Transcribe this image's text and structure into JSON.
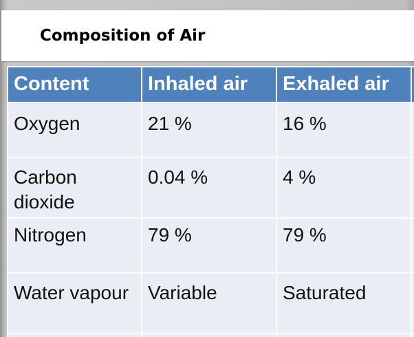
{
  "title": "Composition of Air",
  "table": {
    "headers": [
      "Content",
      "Inhaled air",
      "Exhaled air"
    ],
    "rows": [
      [
        "Oxygen",
        "21 %",
        "16 %"
      ],
      [
        "Carbon dioxide",
        "0.04 %",
        "4 %"
      ],
      [
        "Nitrogen",
        "79 %",
        "79 %"
      ],
      [
        "Water vapour",
        "Variable",
        "Saturated"
      ]
    ]
  },
  "colors": {
    "header_background": "#4f81bd",
    "cell_background": "#e9edf4",
    "header_text": "#ffffff"
  }
}
